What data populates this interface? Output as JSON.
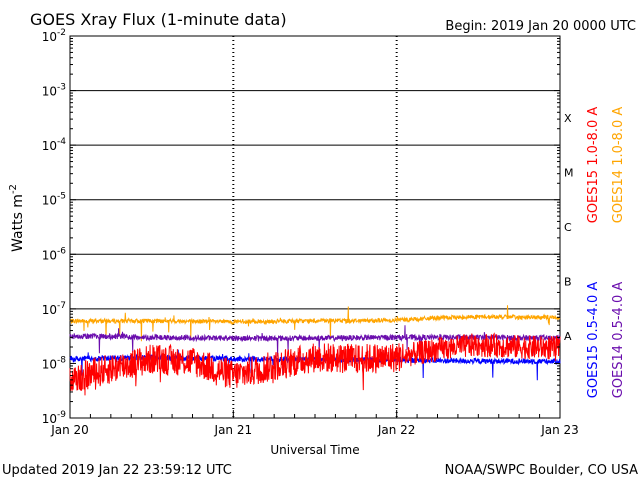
{
  "chart_data": {
    "type": "line",
    "title": "GOES Xray Flux (1-minute data)",
    "begin": "Begin:  2019 Jan 20 0000 UTC",
    "xlabel": "Universal Time",
    "ylabel": "Watts m",
    "ylabel_sup": "-2",
    "x_ticks": [
      "Jan 20",
      "Jan 21",
      "Jan 22",
      "Jan 23"
    ],
    "xlim": [
      "2019-01-20 00:00",
      "2019-01-23 00:00"
    ],
    "y_scale": "log",
    "ylim": [
      1e-09,
      0.01
    ],
    "y_ticks": [
      {
        "base": "10",
        "exp": "-9",
        "value": 1e-09
      },
      {
        "base": "10",
        "exp": "-8",
        "value": 1e-08
      },
      {
        "base": "10",
        "exp": "-7",
        "value": 1e-07
      },
      {
        "base": "10",
        "exp": "-6",
        "value": 1e-06
      },
      {
        "base": "10",
        "exp": "-5",
        "value": 1e-05
      },
      {
        "base": "10",
        "exp": "-4",
        "value": 0.0001
      },
      {
        "base": "10",
        "exp": "-3",
        "value": 0.001
      },
      {
        "base": "10",
        "exp": "-2",
        "value": 0.01
      }
    ],
    "flare_classes": [
      {
        "label": "A",
        "min": 1e-08,
        "max": 1e-07
      },
      {
        "label": "B",
        "min": 1e-07,
        "max": 1e-06
      },
      {
        "label": "C",
        "min": 1e-06,
        "max": 1e-05
      },
      {
        "label": "M",
        "min": 1e-05,
        "max": 0.0001
      },
      {
        "label": "X",
        "min": 0.0001,
        "max": 0.001
      }
    ],
    "series": [
      {
        "name": "GOES15 1.0-8.0 A",
        "color": "#ff0000",
        "x_days": [
          0,
          0.25,
          0.5,
          0.75,
          1.0,
          1.25,
          1.5,
          1.75,
          2.0,
          2.25,
          2.5,
          2.75,
          3.0
        ],
        "values": [
          5e-09,
          8e-09,
          1.2e-08,
          1.1e-08,
          6e-09,
          9e-09,
          1.3e-08,
          1.2e-08,
          1.3e-08,
          1.8e-08,
          2.2e-08,
          2e-08,
          1.9e-08
        ]
      },
      {
        "name": "GOES14 1.0-8.0 A",
        "color": "#ffa500",
        "x_days": [
          0,
          0.5,
          1.0,
          1.5,
          2.0,
          2.25,
          2.5,
          2.75,
          3.0
        ],
        "values": [
          6e-08,
          6e-08,
          5.8e-08,
          6e-08,
          6.2e-08,
          6.8e-08,
          7.2e-08,
          7e-08,
          7e-08
        ]
      },
      {
        "name": "GOES15 0.5-4.0 A",
        "color": "#0000ff",
        "x_days": [
          0,
          0.5,
          1.0,
          1.5,
          2.0,
          2.5,
          3.0
        ],
        "values": [
          1.2e-08,
          1.3e-08,
          1.2e-08,
          1.2e-08,
          1.15e-08,
          1.1e-08,
          1.1e-08
        ]
      },
      {
        "name": "GOES14 0.5-4.0 A",
        "color": "#6a0dad",
        "x_days": [
          0,
          0.5,
          1.0,
          1.5,
          2.0,
          2.5,
          3.0
        ],
        "values": [
          3.2e-08,
          3e-08,
          2.9e-08,
          2.9e-08,
          3e-08,
          3e-08,
          2.9e-08
        ]
      }
    ],
    "legend_placement": "right (vertical)",
    "grid": "horizontal at each decade from 1e-7 to 1e-3; dotted vertical at day boundaries"
  },
  "footer": {
    "updated": "Updated 2019 Jan 22 23:59:12 UTC",
    "credit": "NOAA/SWPC Boulder, CO USA"
  }
}
